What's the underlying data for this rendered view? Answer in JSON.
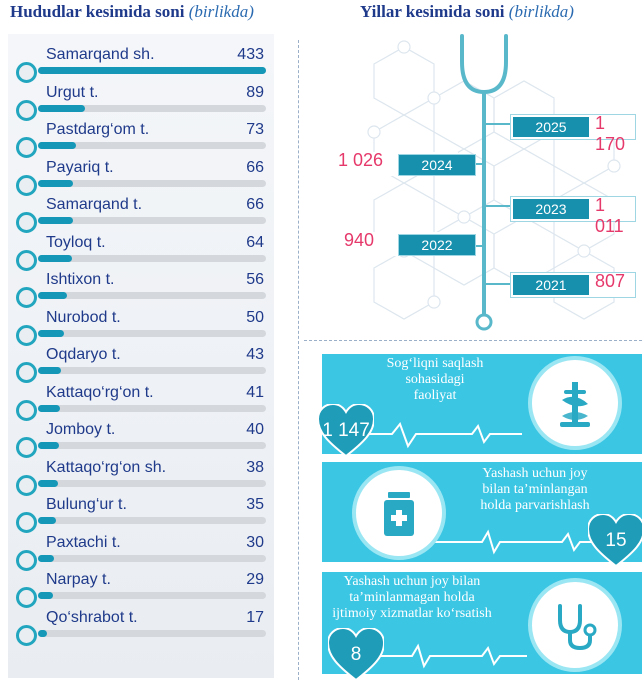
{
  "left_title": {
    "main": "Hududlar kesimida soni",
    "paren": "(birlikda)"
  },
  "right_title": {
    "main": "Yillar kesimida soni",
    "paren": "(birlikda)"
  },
  "chart_data": [
    {
      "type": "bar",
      "categories": [
        "Samarqand sh.",
        "Urgut t.",
        "Pastdarg‘om t.",
        "Payariq t.",
        "Samarqand t.",
        "Toyloq t.",
        "Ishtixon t.",
        "Nurobod t.",
        "Oqdaryo t.",
        "Kattaqo‘rg‘on t.",
        "Jomboy t.",
        "Kattaqo‘rg‘on sh.",
        "Bulung‘ur t.",
        "Paxtachi t.",
        "Narpay t.",
        "Qo‘shrabot t."
      ],
      "values": [
        433,
        89,
        73,
        66,
        66,
        64,
        56,
        50,
        43,
        41,
        40,
        38,
        35,
        30,
        29,
        17
      ],
      "title": "Hududlar kesimida soni (birlikda)"
    },
    {
      "type": "table",
      "title": "Yillar kesimida soni (birlikda)",
      "years": [
        {
          "year": "2025",
          "value": "1 170"
        },
        {
          "year": "2024",
          "value": "1 026"
        },
        {
          "year": "2023",
          "value": "1 011"
        },
        {
          "year": "2022",
          "value": "940"
        },
        {
          "year": "2021",
          "value": "807"
        }
      ]
    }
  ],
  "cards": [
    {
      "caption": [
        "Sog‘liqni saqlash",
        "sohasidagi",
        "faoliyat"
      ],
      "value": "1 147",
      "icon": "caduceus-icon"
    },
    {
      "caption": [
        "Yashash uchun joy",
        "bilan ta’minlangan",
        "holda parvarishlash"
      ],
      "value": "15",
      "icon": "medicine-bottle-icon"
    },
    {
      "caption": [
        "Yashash uchun joy bilan",
        "ta’minlanmagan holda",
        "ijtimoiy xizmatlar ko‘rsatish"
      ],
      "value": "8",
      "icon": "stethoscope-icon"
    }
  ],
  "colors": {
    "accent": "#1598b7",
    "heart": "#1e9cb8",
    "year_value": "#e6396b",
    "title": "#1f3a8a"
  }
}
